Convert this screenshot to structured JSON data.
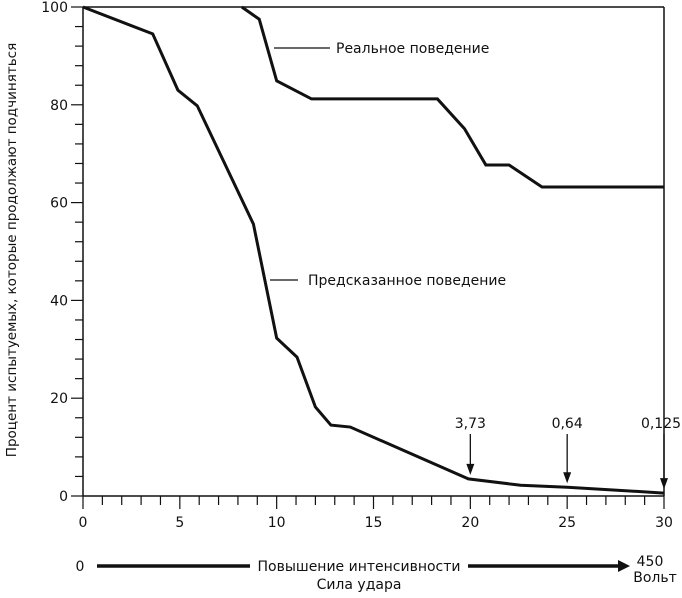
{
  "chart_data": {
    "type": "line",
    "xlabel": "",
    "ylabel": "Процент испытуемых, которые продолжают подчиняться",
    "xlim": [
      0,
      30
    ],
    "ylim": [
      0,
      100
    ],
    "x_ticks": [
      0,
      5,
      10,
      15,
      20,
      25,
      30
    ],
    "y_ticks": [
      0,
      20,
      40,
      60,
      80,
      100
    ],
    "x_minor_step": 1,
    "y_minor_step": 4,
    "grid": false,
    "line_color": "#111111",
    "series": [
      {
        "name": "Реальное поведение",
        "x": [
          8.2,
          9.1,
          10.0,
          11.8,
          18.3,
          19.7,
          20.8,
          22.0,
          23.7,
          30
        ],
        "y": [
          100,
          97.5,
          84.9,
          81.2,
          81.2,
          75.1,
          67.7,
          67.7,
          63.2,
          63.2
        ]
      },
      {
        "name": "Предсказанное поведение",
        "x": [
          0,
          3.6,
          4.9,
          5.9,
          8.8,
          10.0,
          11.05,
          12.0,
          12.8,
          13.8,
          19.9,
          22.6,
          25,
          30
        ],
        "y": [
          100,
          94.5,
          83,
          79.8,
          55.6,
          32.3,
          28.4,
          18.2,
          14.5,
          14.1,
          3.5,
          2.2,
          1.8,
          0.6
        ]
      }
    ],
    "annotations": [
      {
        "x": 20,
        "y": 3.5,
        "text": "3,73"
      },
      {
        "x": 25,
        "y": 1.8,
        "text": "0,64"
      },
      {
        "x": 30,
        "y": 0.6,
        "text": "0,125"
      }
    ],
    "bottom_scale": {
      "start": "0",
      "label": "Повышение интенсивности",
      "sublabel": "Сила удара",
      "end_value": "450",
      "end_unit": "Вольт"
    }
  }
}
